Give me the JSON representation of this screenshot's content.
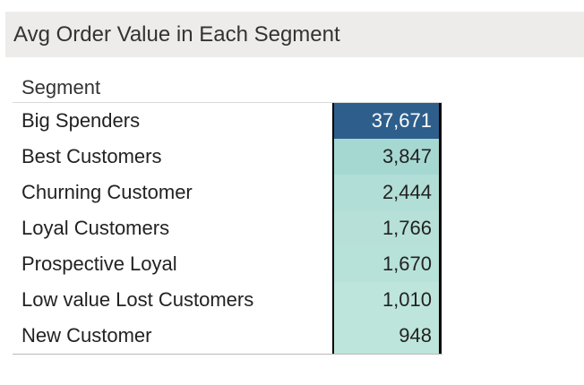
{
  "title": "Avg Order Value in Each Segment",
  "chart_data": {
    "type": "table",
    "title": "Avg Order Value in Each Segment",
    "column_header": "Segment",
    "rows": [
      {
        "label": "Big Spenders",
        "value": 37671,
        "display": "37,671"
      },
      {
        "label": "Best Customers",
        "value": 3847,
        "display": "3,847"
      },
      {
        "label": "Churning Customer",
        "value": 2444,
        "display": "2,444"
      },
      {
        "label": "Loyal Customers",
        "value": 1766,
        "display": "1,766"
      },
      {
        "label": "Prospective Loyal",
        "value": 1670,
        "display": "1,670"
      },
      {
        "label": "Low value Lost Customers",
        "value": 1010,
        "display": "1,010"
      },
      {
        "label": "New Customer",
        "value": 948,
        "display": "948"
      }
    ],
    "color_scale": {
      "low": "#bde5db",
      "high": "#2e5f8c"
    },
    "highlight_color": "#2e5f8c"
  }
}
